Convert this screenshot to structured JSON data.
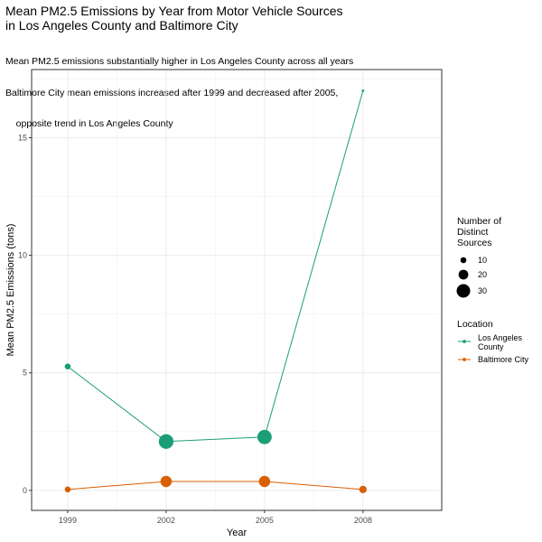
{
  "chart_data": {
    "type": "line",
    "title_lines": [
      "Mean PM2.5 Emissions by Year from Motor Vehicle Sources",
      "in Los Angeles County and Baltimore City"
    ],
    "subtitle_lines": [
      "Mean PM2.5 emissions substantially higher in Los Angeles County across all years",
      "Baltimore City mean emissions increased after 1999 and decreased after 2005,",
      "    opposite trend in Los Angeles County"
    ],
    "xlabel": "Year",
    "ylabel": "Mean PM2.5 Emissions (tons)",
    "x": [
      1999,
      2002,
      2005,
      2008
    ],
    "x_ticks": [
      "1999",
      "2002",
      "2005",
      "2008"
    ],
    "xlim": [
      1997.9,
      2010.4
    ],
    "ylim": [
      -0.85,
      17.9
    ],
    "y_ticks": [
      0,
      5,
      10,
      15
    ],
    "y_tick_labels": [
      "0",
      "5",
      "10",
      "15"
    ],
    "grid": true,
    "series": [
      {
        "name": "Los Angeles County",
        "legend_lines": [
          "Los Angeles",
          "County"
        ],
        "color": "#1b9e77",
        "values": [
          5.27,
          2.08,
          2.27,
          17.0
        ],
        "sources": [
          10,
          33,
          32,
          1
        ]
      },
      {
        "name": "Baltimore City",
        "legend_lines": [
          "Baltimore City"
        ],
        "color": "#d95f02",
        "values": [
          0.04,
          0.38,
          0.38,
          0.04
        ],
        "sources": [
          10,
          24,
          24,
          14
        ]
      }
    ],
    "size_legend": {
      "title_lines": [
        "Number of",
        "Distinct",
        "Sources"
      ],
      "entries": [
        {
          "value": 10,
          "label": "10"
        },
        {
          "value": 20,
          "label": "20"
        },
        {
          "value": 30,
          "label": "30"
        }
      ]
    },
    "color_legend": {
      "title": "Location"
    },
    "legend_position": "right"
  }
}
